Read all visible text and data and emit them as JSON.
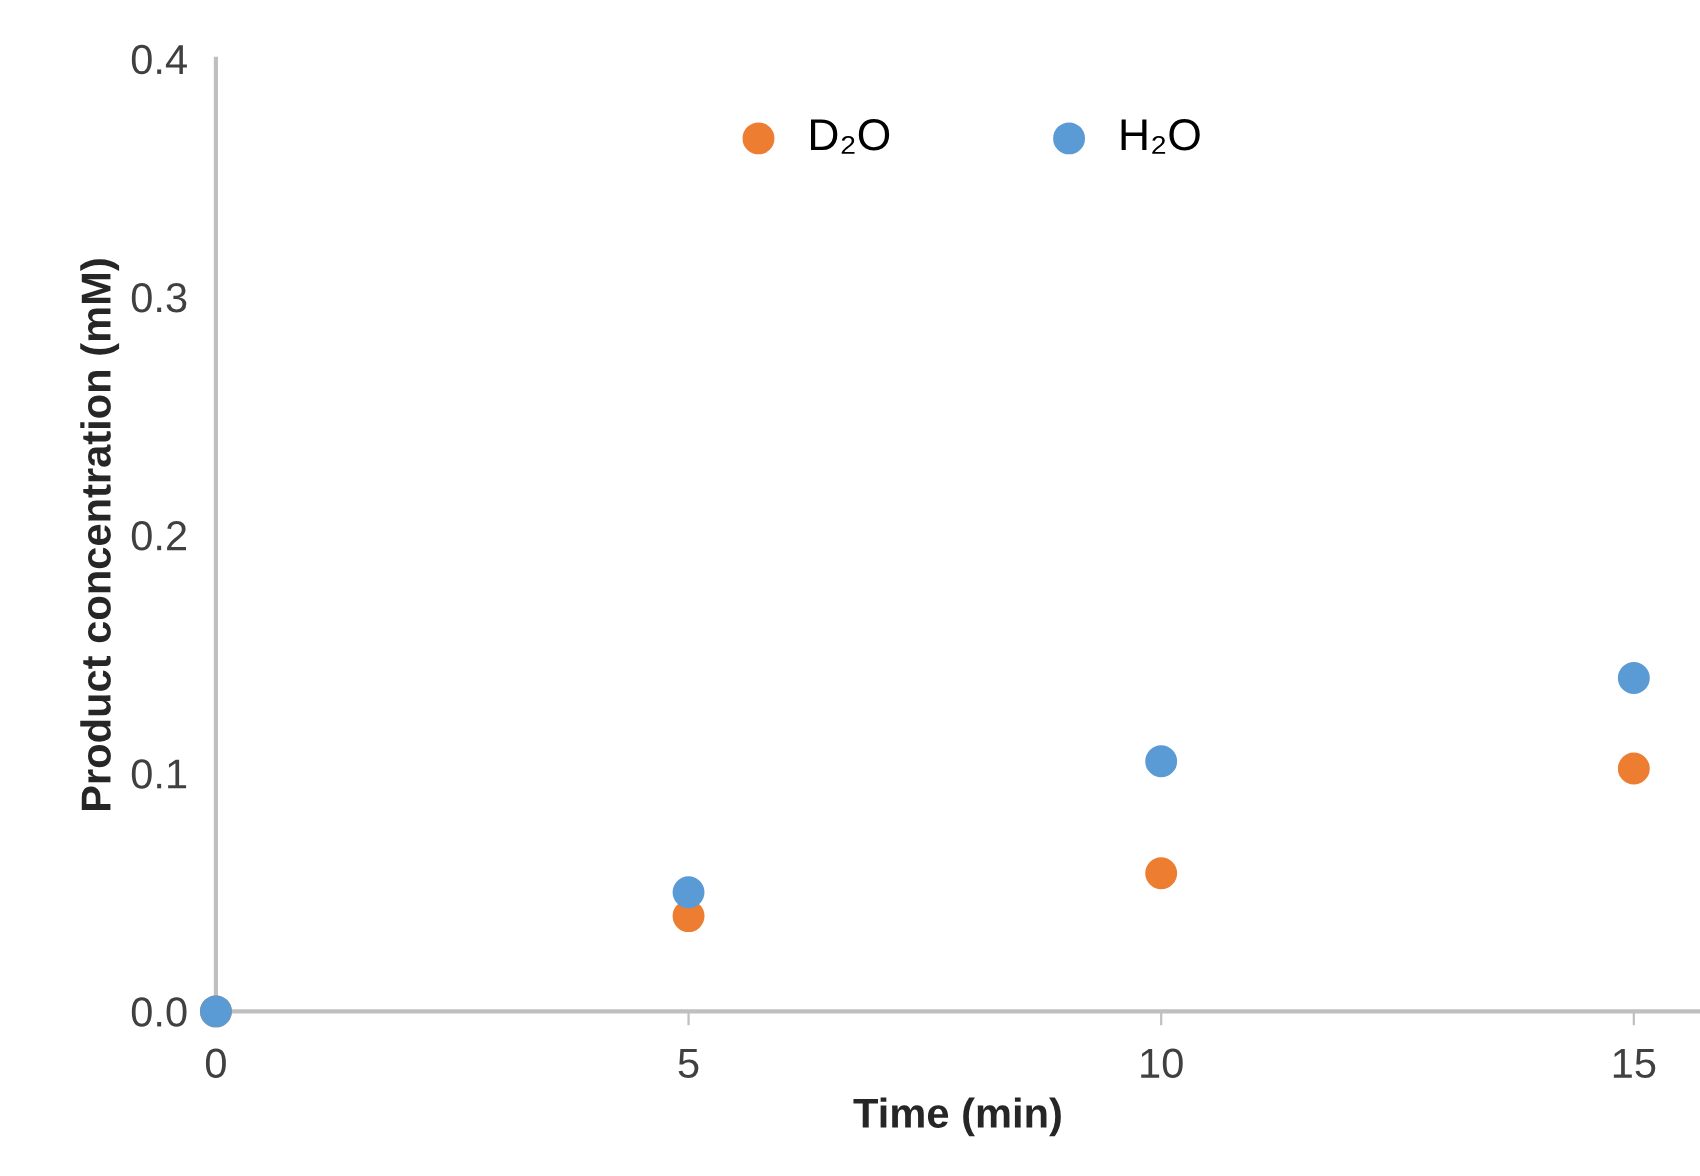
{
  "chart_data": {
    "type": "scatter",
    "xlabel": "Time (min)",
    "ylabel": "Product concentration (mM)",
    "x": [
      0,
      5,
      10,
      15
    ],
    "series": [
      {
        "name": "D₂O",
        "color": "#ed7d31",
        "values": [
          0.0,
          0.04,
          0.058,
          0.102
        ]
      },
      {
        "name": "H₂O",
        "color": "#5b9bd5",
        "values": [
          0.0,
          0.05,
          0.105,
          0.14
        ]
      }
    ],
    "xlim": [
      0,
      15.7
    ],
    "xticks": [
      0,
      5,
      10,
      15
    ],
    "ylim": [
      0,
      0.4
    ],
    "yticks": [
      {
        "value": 0,
        "label": "0.0"
      },
      {
        "value": 0.1,
        "label": "0.1"
      },
      {
        "value": 0.2,
        "label": "0.2"
      },
      {
        "value": 0.3,
        "label": "0.3"
      },
      {
        "value": 0.4,
        "label": "0.4"
      }
    ],
    "grid": false,
    "legend": "top",
    "marker": "circle"
  }
}
